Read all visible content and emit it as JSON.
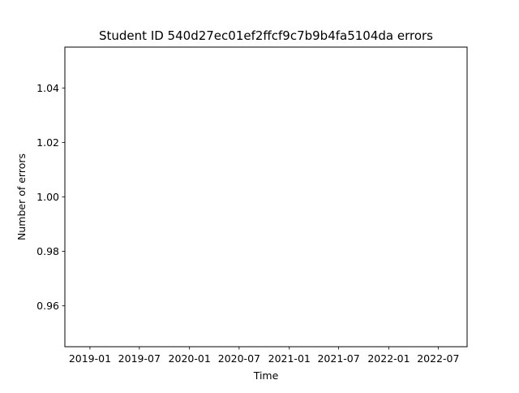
{
  "chart_data": {
    "type": "line",
    "title": "Student ID 540d27ec01ef2ffcf9c7b9b4fa5104da errors",
    "xlabel": "Time",
    "ylabel": "Number of errors",
    "x_axis_type": "date",
    "xlim": [
      "2018-10-01",
      "2022-10-15"
    ],
    "ylim": [
      0.945,
      1.055
    ],
    "x_ticks": [
      {
        "value": "2019-01-01",
        "label": "2019-01"
      },
      {
        "value": "2019-07-01",
        "label": "2019-07"
      },
      {
        "value": "2020-01-01",
        "label": "2020-01"
      },
      {
        "value": "2020-07-01",
        "label": "2020-07"
      },
      {
        "value": "2021-01-01",
        "label": "2021-01"
      },
      {
        "value": "2021-07-01",
        "label": "2021-07"
      },
      {
        "value": "2022-01-01",
        "label": "2022-01"
      },
      {
        "value": "2022-07-01",
        "label": "2022-07"
      }
    ],
    "y_ticks": [
      {
        "value": 0.96,
        "label": "0.96"
      },
      {
        "value": 0.98,
        "label": "0.98"
      },
      {
        "value": 1.0,
        "label": "1.00"
      },
      {
        "value": 1.02,
        "label": "1.02"
      },
      {
        "value": 1.04,
        "label": "1.04"
      }
    ],
    "series": [
      {
        "x": [],
        "y": []
      }
    ],
    "grid": false,
    "legend": "none",
    "colors": {
      "axes": "#000000",
      "background": "#ffffff"
    }
  }
}
